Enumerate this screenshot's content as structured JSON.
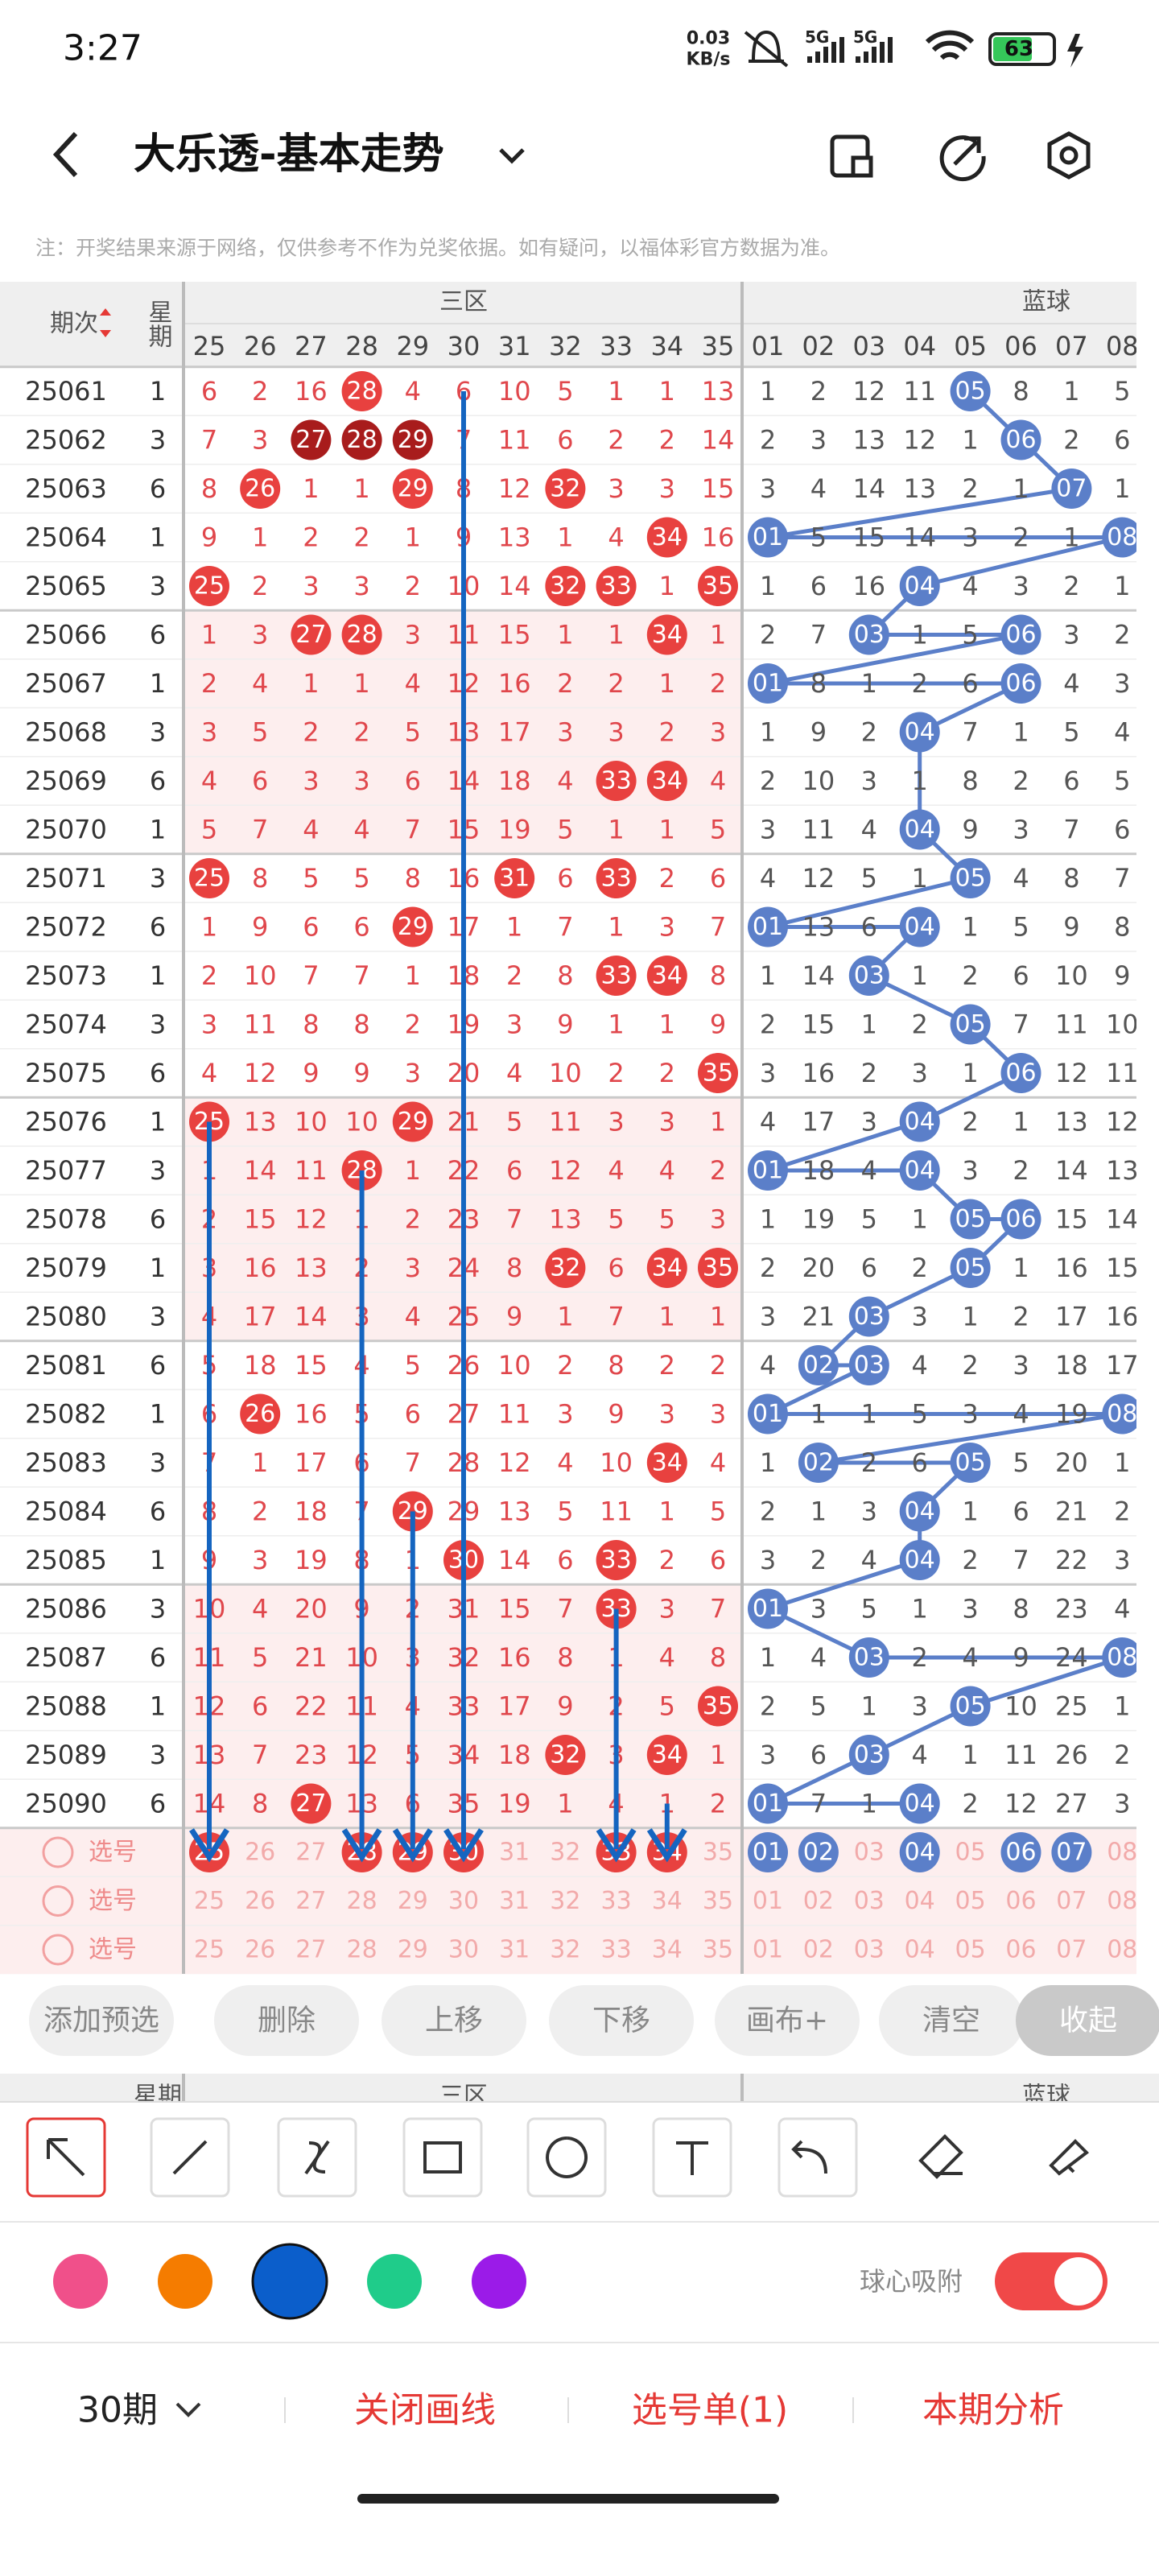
{
  "status_bar": {
    "time": "3:27",
    "net_speed": "0.03",
    "net_unit": "KB/s",
    "sig1": "5G",
    "sig2": "5G",
    "battery": "63"
  },
  "header": {
    "title": "大乐透-基本走势"
  },
  "note": "注：开奖结果来源于网络，仅供参考不作为兑奖依据。如有疑问，以福体彩官方数据为准。",
  "table": {
    "col_period": "期次",
    "col_week": "星期",
    "front_zone": "三区",
    "back_zone": "蓝球",
    "front_numbers": [
      "25",
      "26",
      "27",
      "28",
      "29",
      "30",
      "31",
      "32",
      "33",
      "34",
      "35"
    ],
    "back_numbers": [
      "01",
      "02",
      "03",
      "04",
      "05",
      "06",
      "07",
      "08"
    ],
    "rows": [
      {
        "period": "25061",
        "week": "1",
        "front": [
          "6",
          "2",
          "16",
          "28",
          "4",
          "6",
          "10",
          "5",
          "1",
          "1",
          "13"
        ],
        "back": [
          "1",
          "2",
          "12",
          "11",
          "05",
          "8",
          "1",
          "5"
        ]
      },
      {
        "period": "25062",
        "week": "3",
        "front": [
          "7",
          "3",
          "27",
          "28",
          "29",
          "7",
          "11",
          "6",
          "2",
          "2",
          "14"
        ],
        "back": [
          "2",
          "3",
          "13",
          "12",
          "1",
          "06",
          "2",
          "6"
        ]
      },
      {
        "period": "25063",
        "week": "6",
        "front": [
          "8",
          "26",
          "1",
          "1",
          "29",
          "8",
          "12",
          "32",
          "3",
          "3",
          "15"
        ],
        "back": [
          "3",
          "4",
          "14",
          "13",
          "2",
          "1",
          "07",
          "1"
        ]
      },
      {
        "period": "25064",
        "week": "1",
        "front": [
          "9",
          "1",
          "2",
          "2",
          "1",
          "9",
          "13",
          "1",
          "4",
          "34",
          "16"
        ],
        "back": [
          "01",
          "5",
          "15",
          "14",
          "3",
          "2",
          "1",
          "08"
        ]
      },
      {
        "period": "25065",
        "week": "3",
        "front": [
          "25",
          "2",
          "3",
          "3",
          "2",
          "10",
          "14",
          "32",
          "33",
          "1",
          "35"
        ],
        "back": [
          "1",
          "6",
          "16",
          "04",
          "4",
          "3",
          "2",
          "1"
        ]
      },
      {
        "period": "25066",
        "week": "6",
        "front": [
          "1",
          "3",
          "27",
          "28",
          "3",
          "11",
          "15",
          "1",
          "1",
          "34",
          "1"
        ],
        "back": [
          "2",
          "7",
          "03",
          "1",
          "5",
          "06",
          "3",
          "2"
        ]
      },
      {
        "period": "25067",
        "week": "1",
        "front": [
          "2",
          "4",
          "1",
          "1",
          "4",
          "12",
          "16",
          "2",
          "2",
          "1",
          "2"
        ],
        "back": [
          "01",
          "8",
          "1",
          "2",
          "6",
          "06",
          "4",
          "3"
        ]
      },
      {
        "period": "25068",
        "week": "3",
        "front": [
          "3",
          "5",
          "2",
          "2",
          "5",
          "13",
          "17",
          "3",
          "3",
          "2",
          "3"
        ],
        "back": [
          "1",
          "9",
          "2",
          "04",
          "7",
          "1",
          "5",
          "4"
        ]
      },
      {
        "period": "25069",
        "week": "6",
        "front": [
          "4",
          "6",
          "3",
          "3",
          "6",
          "14",
          "18",
          "4",
          "33",
          "34",
          "4"
        ],
        "back": [
          "2",
          "10",
          "3",
          "1",
          "8",
          "2",
          "6",
          "5"
        ]
      },
      {
        "period": "25070",
        "week": "1",
        "front": [
          "5",
          "7",
          "4",
          "4",
          "7",
          "15",
          "19",
          "5",
          "1",
          "1",
          "5"
        ],
        "back": [
          "3",
          "11",
          "4",
          "04",
          "9",
          "3",
          "7",
          "6"
        ]
      },
      {
        "period": "25071",
        "week": "3",
        "front": [
          "25",
          "8",
          "5",
          "5",
          "8",
          "16",
          "31",
          "6",
          "33",
          "2",
          "6"
        ],
        "back": [
          "4",
          "12",
          "5",
          "1",
          "05",
          "4",
          "8",
          "7"
        ]
      },
      {
        "period": "25072",
        "week": "6",
        "front": [
          "1",
          "9",
          "6",
          "6",
          "29",
          "17",
          "1",
          "7",
          "1",
          "3",
          "7"
        ],
        "back": [
          "01",
          "13",
          "6",
          "04",
          "1",
          "5",
          "9",
          "8"
        ]
      },
      {
        "period": "25073",
        "week": "1",
        "front": [
          "2",
          "10",
          "7",
          "7",
          "1",
          "18",
          "2",
          "8",
          "33",
          "34",
          "8"
        ],
        "back": [
          "1",
          "14",
          "03",
          "1",
          "2",
          "6",
          "10",
          "9"
        ]
      },
      {
        "period": "25074",
        "week": "3",
        "front": [
          "3",
          "11",
          "8",
          "8",
          "2",
          "19",
          "3",
          "9",
          "1",
          "1",
          "9"
        ],
        "back": [
          "2",
          "15",
          "1",
          "2",
          "05",
          "7",
          "11",
          "10"
        ]
      },
      {
        "period": "25075",
        "week": "6",
        "front": [
          "4",
          "12",
          "9",
          "9",
          "3",
          "20",
          "4",
          "10",
          "2",
          "2",
          "35"
        ],
        "back": [
          "3",
          "16",
          "2",
          "3",
          "1",
          "06",
          "12",
          "11"
        ]
      },
      {
        "period": "25076",
        "week": "1",
        "front": [
          "25",
          "13",
          "10",
          "10",
          "29",
          "21",
          "5",
          "11",
          "3",
          "3",
          "1"
        ],
        "back": [
          "4",
          "17",
          "3",
          "04",
          "2",
          "1",
          "13",
          "12"
        ]
      },
      {
        "period": "25077",
        "week": "3",
        "front": [
          "1",
          "14",
          "11",
          "28",
          "1",
          "22",
          "6",
          "12",
          "4",
          "4",
          "2"
        ],
        "back": [
          "01",
          "18",
          "4",
          "04",
          "3",
          "2",
          "14",
          "13"
        ]
      },
      {
        "period": "25078",
        "week": "6",
        "front": [
          "2",
          "15",
          "12",
          "1",
          "2",
          "23",
          "7",
          "13",
          "5",
          "5",
          "3"
        ],
        "back": [
          "1",
          "19",
          "5",
          "1",
          "05",
          "06",
          "15",
          "14"
        ]
      },
      {
        "period": "25079",
        "week": "1",
        "front": [
          "3",
          "16",
          "13",
          "2",
          "3",
          "24",
          "8",
          "32",
          "6",
          "34",
          "35"
        ],
        "back": [
          "2",
          "20",
          "6",
          "2",
          "05",
          "1",
          "16",
          "15"
        ]
      },
      {
        "period": "25080",
        "week": "3",
        "front": [
          "4",
          "17",
          "14",
          "3",
          "4",
          "25",
          "9",
          "1",
          "7",
          "1",
          "1"
        ],
        "back": [
          "3",
          "21",
          "03",
          "3",
          "1",
          "2",
          "17",
          "16"
        ]
      },
      {
        "period": "25081",
        "week": "6",
        "front": [
          "5",
          "18",
          "15",
          "4",
          "5",
          "26",
          "10",
          "2",
          "8",
          "2",
          "2"
        ],
        "back": [
          "4",
          "02",
          "03",
          "4",
          "2",
          "3",
          "18",
          "17"
        ]
      },
      {
        "period": "25082",
        "week": "1",
        "front": [
          "6",
          "26",
          "16",
          "5",
          "6",
          "27",
          "11",
          "3",
          "9",
          "3",
          "3"
        ],
        "back": [
          "01",
          "1",
          "1",
          "5",
          "3",
          "4",
          "19",
          "08"
        ]
      },
      {
        "period": "25083",
        "week": "3",
        "front": [
          "7",
          "1",
          "17",
          "6",
          "7",
          "28",
          "12",
          "4",
          "10",
          "34",
          "4"
        ],
        "back": [
          "1",
          "02",
          "2",
          "6",
          "05",
          "5",
          "20",
          "1"
        ]
      },
      {
        "period": "25084",
        "week": "6",
        "front": [
          "8",
          "2",
          "18",
          "7",
          "29",
          "29",
          "13",
          "5",
          "11",
          "1",
          "5"
        ],
        "back": [
          "2",
          "1",
          "3",
          "04",
          "1",
          "6",
          "21",
          "2"
        ]
      },
      {
        "period": "25085",
        "week": "1",
        "front": [
          "9",
          "3",
          "19",
          "8",
          "1",
          "30",
          "14",
          "6",
          "33",
          "2",
          "6"
        ],
        "back": [
          "3",
          "2",
          "4",
          "04",
          "2",
          "7",
          "22",
          "3"
        ]
      },
      {
        "period": "25086",
        "week": "3",
        "front": [
          "10",
          "4",
          "20",
          "9",
          "2",
          "31",
          "15",
          "7",
          "33",
          "3",
          "7"
        ],
        "back": [
          "01",
          "3",
          "5",
          "1",
          "3",
          "8",
          "23",
          "4"
        ]
      },
      {
        "period": "25087",
        "week": "6",
        "front": [
          "11",
          "5",
          "21",
          "10",
          "3",
          "32",
          "16",
          "8",
          "1",
          "4",
          "8"
        ],
        "back": [
          "1",
          "4",
          "03",
          "2",
          "4",
          "9",
          "24",
          "08"
        ]
      },
      {
        "period": "25088",
        "week": "1",
        "front": [
          "12",
          "6",
          "22",
          "11",
          "4",
          "33",
          "17",
          "9",
          "2",
          "5",
          "35"
        ],
        "back": [
          "2",
          "5",
          "1",
          "3",
          "05",
          "10",
          "25",
          "1"
        ]
      },
      {
        "period": "25089",
        "week": "3",
        "front": [
          "13",
          "7",
          "23",
          "12",
          "5",
          "34",
          "18",
          "32",
          "3",
          "34",
          "1"
        ],
        "back": [
          "3",
          "6",
          "03",
          "4",
          "1",
          "11",
          "26",
          "2"
        ]
      },
      {
        "period": "25090",
        "week": "6",
        "front": [
          "14",
          "8",
          "27",
          "13",
          "6",
          "35",
          "19",
          "1",
          "4",
          "1",
          "2"
        ],
        "back": [
          "01",
          "7",
          "1",
          "04",
          "2",
          "12",
          "27",
          "3"
        ]
      }
    ],
    "picks": [
      {
        "label": "选号",
        "front": [
          {
            "text": "25",
            "selected": true
          },
          {
            "text": "26",
            "selected": false
          },
          {
            "text": "27",
            "selected": false
          },
          {
            "text": "28",
            "selected": true
          },
          {
            "text": "29",
            "selected": true
          },
          {
            "text": "30",
            "selected": true
          },
          {
            "text": "31",
            "selected": false
          },
          {
            "text": "32",
            "selected": false
          },
          {
            "text": "33",
            "selected": true
          },
          {
            "text": "34",
            "selected": true
          },
          {
            "text": "35",
            "selected": false
          }
        ],
        "back": [
          {
            "text": "01",
            "selected": true
          },
          {
            "text": "02",
            "selected": true
          },
          {
            "text": "03",
            "selected": false
          },
          {
            "text": "04",
            "selected": true
          },
          {
            "text": "05",
            "selected": false
          },
          {
            "text": "06",
            "selected": true
          },
          {
            "text": "07",
            "selected": true
          },
          {
            "text": "08",
            "selected": false
          }
        ]
      },
      {
        "label": "选号",
        "front": [
          {
            "text": "25",
            "selected": false
          },
          {
            "text": "26",
            "selected": false
          },
          {
            "text": "27",
            "selected": false
          },
          {
            "text": "28",
            "selected": false
          },
          {
            "text": "29",
            "selected": false
          },
          {
            "text": "30",
            "selected": false
          },
          {
            "text": "31",
            "selected": false
          },
          {
            "text": "32",
            "selected": false
          },
          {
            "text": "33",
            "selected": false
          },
          {
            "text": "34",
            "selected": false
          },
          {
            "text": "35",
            "selected": false
          }
        ],
        "back": [
          {
            "text": "01",
            "selected": false
          },
          {
            "text": "02",
            "selected": false
          },
          {
            "text": "03",
            "selected": false
          },
          {
            "text": "04",
            "selected": false
          },
          {
            "text": "05",
            "selected": false
          },
          {
            "text": "06",
            "selected": false
          },
          {
            "text": "07",
            "selected": false
          },
          {
            "text": "08",
            "selected": false
          }
        ]
      },
      {
        "label": "选号",
        "front": [
          {
            "text": "25",
            "selected": false
          },
          {
            "text": "26",
            "selected": false
          },
          {
            "text": "27",
            "selected": false
          },
          {
            "text": "28",
            "selected": false
          },
          {
            "text": "29",
            "selected": false
          },
          {
            "text": "30",
            "selected": false
          },
          {
            "text": "31",
            "selected": false
          },
          {
            "text": "32",
            "selected": false
          },
          {
            "text": "33",
            "selected": false
          },
          {
            "text": "34",
            "selected": false
          },
          {
            "text": "35",
            "selected": false
          }
        ],
        "back": [
          {
            "text": "01",
            "selected": false
          },
          {
            "text": "02",
            "selected": false
          },
          {
            "text": "03",
            "selected": false
          },
          {
            "text": "04",
            "selected": false
          },
          {
            "text": "05",
            "selected": false
          },
          {
            "text": "06",
            "selected": false
          },
          {
            "text": "07",
            "selected": false
          },
          {
            "text": "08",
            "selected": false
          }
        ]
      }
    ]
  },
  "buttons": [
    "添加预选",
    "删除",
    "上移",
    "下移",
    "画布+",
    "清空",
    "收起"
  ],
  "tools": {
    "colors": [
      "#f0508a",
      "#f57c00",
      "#0b5ecb",
      "#1fcc8a",
      "#9b1be8"
    ],
    "selected_color": 2,
    "snap_label": "球心吸附",
    "snap_on": true
  },
  "bottom_bar": {
    "period_select": "30期",
    "close_lines": "关闭画线",
    "pick_list": "选号单(1)",
    "analysis": "本期分析"
  }
}
